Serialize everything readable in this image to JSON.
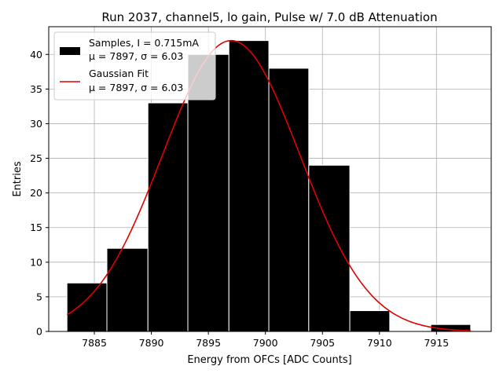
{
  "chart_data": {
    "type": "bar",
    "title": "Run 2037, channel5, lo gain, Pulse w/ 7.0 dB Attenuation",
    "xlabel": "Energy from OFCs [ADC Counts]",
    "ylabel": "Entries",
    "xlim": [
      7881.0,
      7919.8
    ],
    "ylim": [
      0,
      44
    ],
    "grid": true,
    "xticks": [
      7885,
      7890,
      7895,
      7900,
      7905,
      7910,
      7915
    ],
    "yticks": [
      0,
      5,
      10,
      15,
      20,
      25,
      30,
      35,
      40
    ],
    "histogram": {
      "name": "Samples, I = 0.715mA",
      "stats": "μ = 7897, σ = 6.03",
      "color": "#000000",
      "edge_color": "#ffffff",
      "bins": [
        {
          "start": 7882.6,
          "end": 7886.1,
          "count": 7
        },
        {
          "start": 7886.1,
          "end": 7889.7,
          "count": 12
        },
        {
          "start": 7889.7,
          "end": 7893.2,
          "count": 33
        },
        {
          "start": 7893.2,
          "end": 7896.8,
          "count": 40
        },
        {
          "start": 7896.8,
          "end": 7900.3,
          "count": 42
        },
        {
          "start": 7900.3,
          "end": 7903.8,
          "count": 38
        },
        {
          "start": 7903.8,
          "end": 7907.4,
          "count": 24
        },
        {
          "start": 7907.4,
          "end": 7910.9,
          "count": 3
        },
        {
          "start": 7910.9,
          "end": 7914.5,
          "count": 0
        },
        {
          "start": 7914.5,
          "end": 7918.0,
          "count": 1
        }
      ]
    },
    "fit": {
      "name": "Gaussian Fit",
      "stats": "μ = 7897, σ = 6.03",
      "color": "#e00000",
      "mu": 7897.0,
      "sigma": 6.03,
      "amplitude": 42.0,
      "x_range": [
        7882.6,
        7918.0
      ]
    },
    "legend_location": "top-left"
  }
}
